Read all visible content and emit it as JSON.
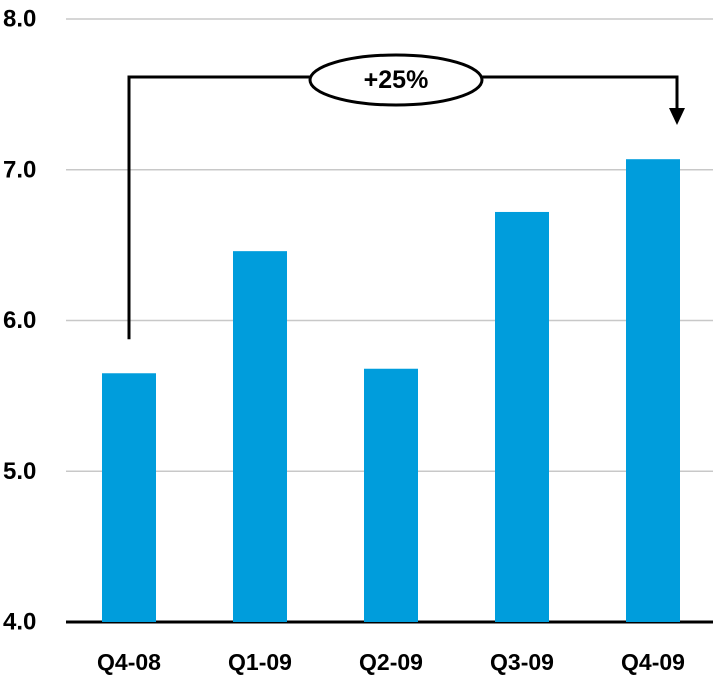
{
  "chart_data": {
    "type": "bar",
    "title": "",
    "xlabel": "",
    "ylabel": "",
    "categories": [
      "Q4-08",
      "Q1-09",
      "Q2-09",
      "Q3-09",
      "Q4-09"
    ],
    "values": [
      5.65,
      6.46,
      5.68,
      6.72,
      7.07
    ],
    "ylim": [
      4.0,
      8.0
    ],
    "yticks": [
      "4.0",
      "5.0",
      "6.0",
      "7.0",
      "8.0"
    ],
    "grid": true,
    "legend": "none",
    "bar_color": "#009DDC",
    "annotation": {
      "text": "+25%",
      "from_category": "Q4-08",
      "to_category": "Q4-09"
    }
  }
}
